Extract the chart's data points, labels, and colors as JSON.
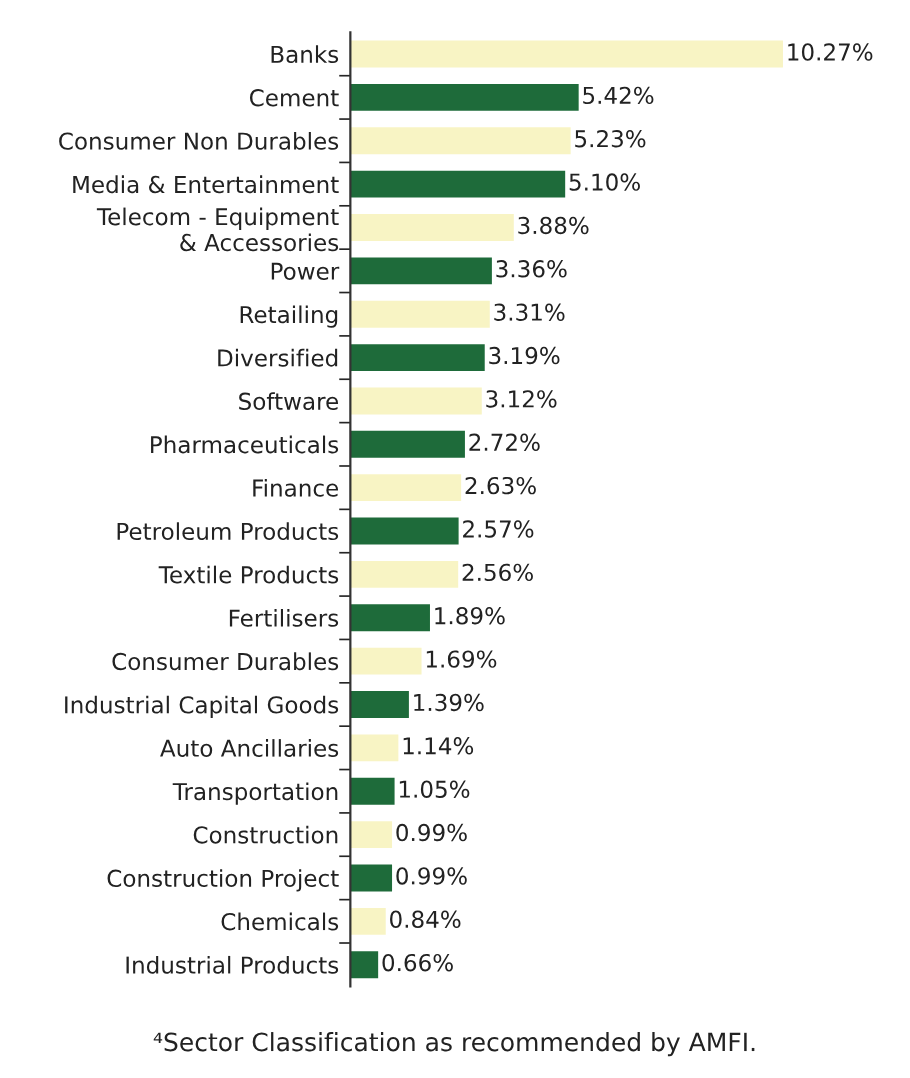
{
  "chart_data": {
    "type": "bar",
    "orientation": "horizontal",
    "value_labels": [
      "10.27%",
      "5.42%",
      "5.23%",
      "5.10%",
      "3.88%",
      "3.36%",
      "3.31%",
      "3.19%",
      "3.12%",
      "2.72%",
      "2.63%",
      "2.57%",
      "2.56%",
      "1.89%",
      "1.69%",
      "1.39%",
      "1.14%",
      "1.05%",
      "0.99%",
      "0.99%",
      "0.84%",
      "0.66%"
    ],
    "categories": [
      "Banks",
      "Cement",
      "Consumer Non Durables",
      "Media & Entertainment",
      "Telecom - Equipment\n& Accessories",
      "Power",
      "Retailing",
      "Diversified",
      "Software",
      "Pharmaceuticals",
      "Finance",
      "Petroleum Products",
      "Textile Products",
      "Fertilisers",
      "Consumer Durables",
      "Industrial Capital Goods",
      "Auto Ancillaries",
      "Transportation",
      "Construction",
      "Construction Project",
      "Chemicals",
      "Industrial Products"
    ],
    "values": [
      10.27,
      5.42,
      5.23,
      5.1,
      3.88,
      3.36,
      3.31,
      3.19,
      3.12,
      2.72,
      2.63,
      2.57,
      2.56,
      1.89,
      1.69,
      1.39,
      1.14,
      1.05,
      0.99,
      0.99,
      0.84,
      0.66
    ],
    "colors": [
      "#f8f4c4",
      "#1e6b3a",
      "#f8f4c4",
      "#1e6b3a",
      "#f8f4c4",
      "#1e6b3a",
      "#f8f4c4",
      "#1e6b3a",
      "#f8f4c4",
      "#1e6b3a",
      "#f8f4c4",
      "#1e6b3a",
      "#f8f4c4",
      "#1e6b3a",
      "#f8f4c4",
      "#1e6b3a",
      "#f8f4c4",
      "#1e6b3a",
      "#f8f4c4",
      "#1e6b3a",
      "#f8f4c4",
      "#1e6b3a"
    ],
    "annotations": [
      "⁴Sector Classification as recommended by AMFI."
    ]
  }
}
